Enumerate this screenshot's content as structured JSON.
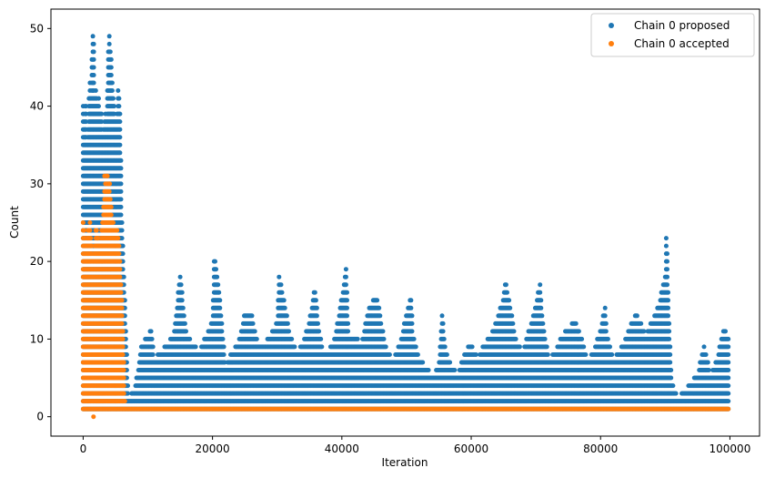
{
  "chart_data": {
    "type": "scatter",
    "title": "",
    "xlabel": "Iteration",
    "ylabel": "Count",
    "xlim": [
      -4980,
      104580
    ],
    "ylim": [
      -2.5,
      52.5
    ],
    "x_ticks": [
      0,
      20000,
      40000,
      60000,
      80000,
      100000
    ],
    "x_tick_labels": [
      "0",
      "20000",
      "40000",
      "60000",
      "80000",
      "100000"
    ],
    "y_ticks": [
      0,
      10,
      20,
      30,
      40,
      50
    ],
    "y_tick_labels": [
      "0",
      "10",
      "20",
      "30",
      "40",
      "50"
    ],
    "grid": false,
    "legend": {
      "location": "upper right",
      "entries": [
        "Chain 0 proposed",
        "Chain 0 accepted"
      ]
    },
    "colors": {
      "proposed": "#1f77b4",
      "accepted": "#ff7f0e"
    },
    "series": [
      {
        "name": "Chain 0 proposed",
        "color": "#1f77b4",
        "note_points": "dense columns of integer counts from 1 up to the local maximum at each iteration block",
        "column_maxima": [
          [
            0,
            40
          ],
          [
            200,
            37
          ],
          [
            400,
            42
          ],
          [
            600,
            35
          ],
          [
            800,
            38
          ],
          [
            1000,
            44
          ],
          [
            1200,
            41
          ],
          [
            1400,
            47
          ],
          [
            1600,
            50
          ],
          [
            1800,
            41
          ],
          [
            2000,
            42
          ],
          [
            2200,
            39
          ],
          [
            2400,
            41
          ],
          [
            2600,
            38
          ],
          [
            2800,
            40
          ],
          [
            3000,
            36
          ],
          [
            3200,
            37
          ],
          [
            3400,
            39
          ],
          [
            3600,
            38
          ],
          [
            3800,
            43
          ],
          [
            4000,
            50
          ],
          [
            4200,
            47
          ],
          [
            4400,
            45
          ],
          [
            4600,
            41
          ],
          [
            4800,
            40
          ],
          [
            5000,
            37
          ],
          [
            5200,
            38
          ],
          [
            5400,
            42
          ],
          [
            5600,
            41
          ],
          [
            5800,
            36
          ],
          [
            6000,
            25
          ],
          [
            7000,
            2
          ],
          [
            8000,
            3
          ],
          [
            9000,
            9
          ],
          [
            10000,
            10
          ],
          [
            10500,
            11
          ],
          [
            11000,
            7
          ],
          [
            12000,
            8
          ],
          [
            13000,
            9
          ],
          [
            14000,
            10
          ],
          [
            14500,
            14
          ],
          [
            15000,
            18
          ],
          [
            15500,
            14
          ],
          [
            16000,
            10
          ],
          [
            17000,
            9
          ],
          [
            18000,
            8
          ],
          [
            19000,
            10
          ],
          [
            20000,
            12
          ],
          [
            20300,
            21
          ],
          [
            21000,
            16
          ],
          [
            22000,
            6
          ],
          [
            23000,
            8
          ],
          [
            24000,
            9
          ],
          [
            25000,
            13
          ],
          [
            26000,
            13
          ],
          [
            27000,
            9
          ],
          [
            28000,
            9
          ],
          [
            29000,
            10
          ],
          [
            30000,
            12
          ],
          [
            30300,
            18
          ],
          [
            31000,
            15
          ],
          [
            32000,
            10
          ],
          [
            33000,
            8
          ],
          [
            34000,
            9
          ],
          [
            35000,
            12
          ],
          [
            35800,
            16
          ],
          [
            36500,
            11
          ],
          [
            37000,
            8
          ],
          [
            38000,
            8
          ],
          [
            39000,
            10
          ],
          [
            40000,
            15
          ],
          [
            40700,
            19
          ],
          [
            41000,
            10
          ],
          [
            42000,
            10
          ],
          [
            43000,
            9
          ],
          [
            44000,
            13
          ],
          [
            45000,
            15
          ],
          [
            45500,
            15
          ],
          [
            46000,
            12
          ],
          [
            47000,
            8
          ],
          [
            48000,
            7
          ],
          [
            49000,
            9
          ],
          [
            50000,
            13
          ],
          [
            50700,
            15
          ],
          [
            51000,
            10
          ],
          [
            52000,
            7
          ],
          [
            53000,
            6
          ],
          [
            54000,
            5
          ],
          [
            55000,
            6
          ],
          [
            55500,
            13
          ],
          [
            56000,
            8
          ],
          [
            57000,
            6
          ],
          [
            58000,
            5
          ],
          [
            59000,
            8
          ],
          [
            60000,
            9
          ],
          [
            61000,
            7
          ],
          [
            62000,
            9
          ],
          [
            63000,
            10
          ],
          [
            64000,
            12
          ],
          [
            65000,
            15
          ],
          [
            65300,
            17
          ],
          [
            66000,
            14
          ],
          [
            67000,
            9
          ],
          [
            68000,
            8
          ],
          [
            69000,
            11
          ],
          [
            70000,
            14
          ],
          [
            70700,
            17
          ],
          [
            71000,
            12
          ],
          [
            72000,
            7
          ],
          [
            73000,
            8
          ],
          [
            74000,
            10
          ],
          [
            75000,
            11
          ],
          [
            76000,
            12
          ],
          [
            77000,
            10
          ],
          [
            78000,
            7
          ],
          [
            79000,
            8
          ],
          [
            80000,
            11
          ],
          [
            80700,
            14
          ],
          [
            81000,
            10
          ],
          [
            82000,
            7
          ],
          [
            83000,
            8
          ],
          [
            84000,
            10
          ],
          [
            85000,
            12
          ],
          [
            85500,
            13
          ],
          [
            86000,
            12
          ],
          [
            87000,
            10
          ],
          [
            88000,
            12
          ],
          [
            89000,
            14
          ],
          [
            90000,
            18
          ],
          [
            90200,
            24
          ],
          [
            90500,
            14
          ],
          [
            91000,
            4
          ],
          [
            92000,
            2
          ],
          [
            93000,
            3
          ],
          [
            94000,
            4
          ],
          [
            95000,
            5
          ],
          [
            96000,
            9
          ],
          [
            97000,
            5
          ],
          [
            98000,
            7
          ],
          [
            99000,
            11
          ],
          [
            99700,
            10
          ]
        ]
      },
      {
        "name": "Chain 0 accepted",
        "color": "#ff7f0e",
        "note_points": "dense columns of integer counts from 1 up to the local maximum; count stays at 1 after ~6000",
        "column_maxima": [
          [
            0,
            25
          ],
          [
            500,
            22
          ],
          [
            1000,
            25
          ],
          [
            1500,
            20
          ],
          [
            2000,
            24
          ],
          [
            2500,
            22
          ],
          [
            3000,
            25
          ],
          [
            3500,
            31
          ],
          [
            4000,
            30
          ],
          [
            4500,
            25
          ],
          [
            5000,
            24
          ],
          [
            5500,
            23
          ],
          [
            6000,
            15
          ],
          [
            6500,
            1
          ],
          [
            100000,
            1
          ]
        ],
        "extra_points": [
          [
            1600,
            0
          ],
          [
            2300,
            23
          ],
          [
            2900,
            20
          ],
          [
            3300,
            31
          ],
          [
            4100,
            30
          ],
          [
            5400,
            23
          ]
        ]
      }
    ]
  }
}
